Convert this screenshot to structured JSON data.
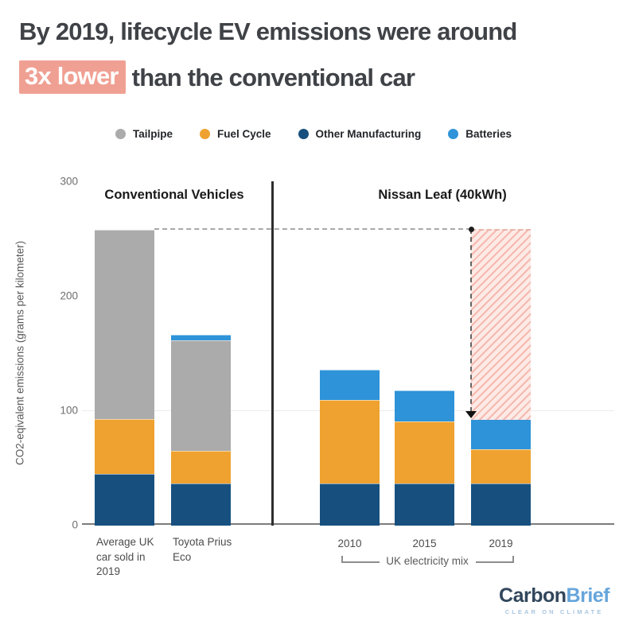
{
  "title": {
    "line1": "By 2019, lifecycle EV emissions were around",
    "highlight": "3x lower",
    "line2_rest": "than the conventional car"
  },
  "theme": {
    "highlight_bg": "#F0A093",
    "highlight_text": "#FFFFFF",
    "title_text": "#3F4246"
  },
  "legend": {
    "items": [
      {
        "label": "Tailpipe",
        "series": "tailpipe",
        "color": "#ABABAB"
      },
      {
        "label": "Fuel Cycle",
        "series": "fuel_cycle",
        "color": "#EFA22F"
      },
      {
        "label": "Other Manufacturing",
        "series": "other_manufacturing",
        "color": "#17507E"
      },
      {
        "label": "Batteries",
        "series": "batteries",
        "color": "#2E93D8"
      }
    ]
  },
  "chart_data": {
    "type": "bar",
    "stacked": true,
    "title": "",
    "ylabel": "CO2-eqivalent emissions (grams per kilometer)",
    "xlabel": "",
    "ylim": [
      0,
      300
    ],
    "yticks": [
      0,
      100,
      200,
      300
    ],
    "gridlines": [
      100
    ],
    "series_colors": {
      "tailpipe": "#ABABAB",
      "fuel_cycle": "#EFA22F",
      "other_manufacturing": "#17507E",
      "batteries": "#2E93D8"
    },
    "panels": [
      {
        "title": "Conventional Vehicles",
        "bars": [
          {
            "name": "average-uk-car-sold-in-2019",
            "label_lines": [
              "Average UK",
              "car sold in",
              "2019"
            ],
            "segments": [
              {
                "series": "other_manufacturing",
                "value": 45
              },
              {
                "series": "fuel_cycle",
                "value": 48
              },
              {
                "series": "tailpipe",
                "value": 165
              }
            ],
            "total": 258
          },
          {
            "name": "toyota-prius-eco",
            "label_lines": [
              "Toyota Prius",
              "Eco"
            ],
            "segments": [
              {
                "series": "other_manufacturing",
                "value": 37
              },
              {
                "series": "fuel_cycle",
                "value": 28
              },
              {
                "series": "tailpipe",
                "value": 97
              },
              {
                "series": "batteries",
                "value": 5
              }
            ],
            "total": 167
          }
        ]
      },
      {
        "title": "Nissan Leaf (40kWh)",
        "group_label": "UK electricity mix",
        "bars": [
          {
            "name": "leaf-2010",
            "label_lines": [
              "2010"
            ],
            "segments": [
              {
                "series": "other_manufacturing",
                "value": 37
              },
              {
                "series": "fuel_cycle",
                "value": 73
              },
              {
                "series": "batteries",
                "value": 26
              }
            ],
            "total": 136
          },
          {
            "name": "leaf-2015",
            "label_lines": [
              "2015"
            ],
            "segments": [
              {
                "series": "other_manufacturing",
                "value": 37
              },
              {
                "series": "fuel_cycle",
                "value": 54
              },
              {
                "series": "batteries",
                "value": 27
              }
            ],
            "total": 118
          },
          {
            "name": "leaf-2019",
            "label_lines": [
              "2019"
            ],
            "segments": [
              {
                "series": "other_manufacturing",
                "value": 37
              },
              {
                "series": "fuel_cycle",
                "value": 30
              },
              {
                "series": "batteries",
                "value": 26
              }
            ],
            "total": 93
          }
        ]
      }
    ],
    "annotation": {
      "dashed_reference_value": 258,
      "hatched_range": {
        "from": 93,
        "to": 258
      },
      "hatch_colors": {
        "stripe": "#F5B9AE",
        "background": "#FDEAE6"
      }
    }
  },
  "logo": {
    "brand_dark": "Carbon",
    "brand_light": "Brief",
    "tagline": "CLEAR ON CLIMATE",
    "color_dark": "#32475C",
    "color_light": "#66A5DB",
    "color_tagline": "#A9C6DF"
  }
}
